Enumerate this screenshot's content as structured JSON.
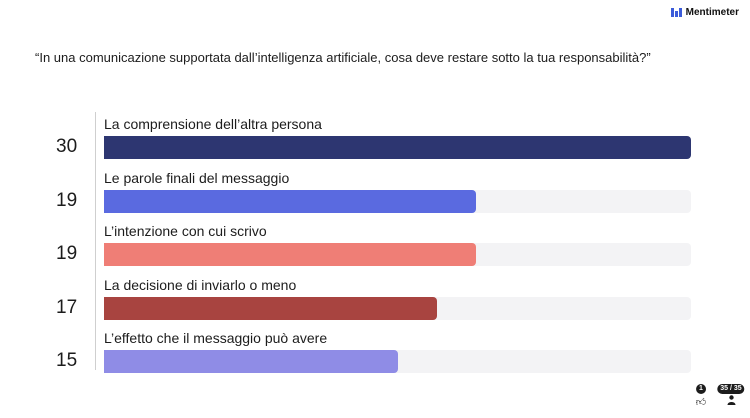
{
  "brand": {
    "name": "Mentimeter",
    "logo_color": "#3b5bd9"
  },
  "question": "“In una comunicazione supportata dall’intelligenza artificiale, cosa deve restare sotto la tua responsabilità?”",
  "chart_data": {
    "type": "bar",
    "orientation": "horizontal",
    "max": 30,
    "grid": false,
    "categories": [
      "La comprensione dell’altra persona",
      "Le parole finali del messaggio",
      "L’intenzione con cui scrivo",
      "La decisione di inviarlo o meno",
      "L’effetto che il messaggio può avere"
    ],
    "values": [
      30,
      19,
      19,
      17,
      15
    ],
    "colors": [
      "#2d3671",
      "#5a6ae0",
      "#ef7e76",
      "#a84440",
      "#8f8ce6"
    ],
    "track_color": "#f3f3f5"
  },
  "footer": {
    "reactions_count": "1",
    "reactions_icon": "thumbs-up-icon",
    "slide_counter": "35 / 35",
    "participants_icon": "person-icon"
  }
}
